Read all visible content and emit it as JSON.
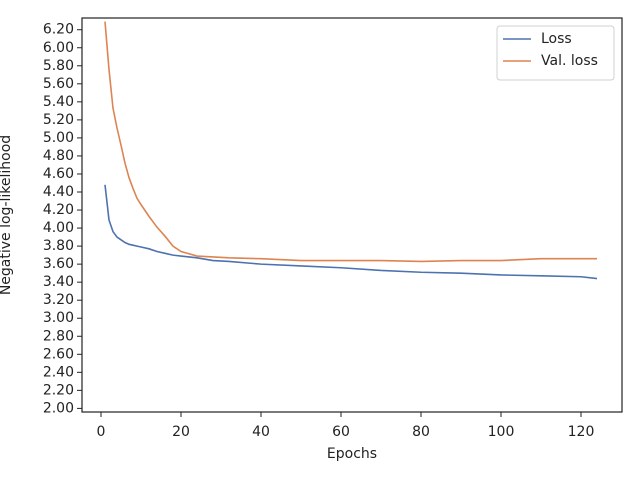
{
  "chart_data": {
    "type": "line",
    "xlabel": "Epochs",
    "ylabel": "Negative log-likelihood",
    "x": [
      1,
      2,
      3,
      4,
      5,
      6,
      7,
      8,
      9,
      10,
      12,
      14,
      16,
      18,
      20,
      24,
      28,
      32,
      40,
      50,
      60,
      70,
      80,
      90,
      100,
      110,
      120,
      124
    ],
    "series": [
      {
        "name": "Loss",
        "color": "#4c72b0",
        "values": [
          4.48,
          4.09,
          3.96,
          3.9,
          3.87,
          3.84,
          3.82,
          3.81,
          3.8,
          3.79,
          3.77,
          3.74,
          3.72,
          3.7,
          3.69,
          3.67,
          3.64,
          3.63,
          3.6,
          3.58,
          3.56,
          3.53,
          3.51,
          3.5,
          3.48,
          3.47,
          3.46,
          3.44
        ]
      },
      {
        "name": "Val. loss",
        "color": "#dd8452",
        "values": [
          6.29,
          5.76,
          5.33,
          5.11,
          4.92,
          4.72,
          4.56,
          4.44,
          4.33,
          4.26,
          4.13,
          4.01,
          3.91,
          3.8,
          3.74,
          3.69,
          3.68,
          3.67,
          3.66,
          3.64,
          3.64,
          3.64,
          3.63,
          3.64,
          3.64,
          3.66,
          3.66,
          3.66
        ]
      }
    ],
    "xlim": [
      -4.75,
      130.25
    ],
    "xticks": [
      0,
      20,
      40,
      60,
      80,
      100,
      120
    ],
    "ylim": [
      1.96,
      6.33
    ],
    "yticks": [
      {
        "value": 2.0,
        "label": "2.00"
      },
      {
        "value": 2.2,
        "label": "2.20"
      },
      {
        "value": 2.4,
        "label": "2.40"
      },
      {
        "value": 2.6,
        "label": "2.60"
      },
      {
        "value": 2.8,
        "label": "2.80"
      },
      {
        "value": 3.0,
        "label": "3.00"
      },
      {
        "value": 3.2,
        "label": "3.20"
      },
      {
        "value": 3.4,
        "label": "3.40"
      },
      {
        "value": 3.6,
        "label": "3.60"
      },
      {
        "value": 3.8,
        "label": "3.80"
      },
      {
        "value": 4.0,
        "label": "4.00"
      },
      {
        "value": 4.2,
        "label": "4.20"
      },
      {
        "value": 4.4,
        "label": "4.40"
      },
      {
        "value": 4.6,
        "label": "4.60"
      },
      {
        "value": 4.8,
        "label": "4.80"
      },
      {
        "value": 5.0,
        "label": "5.00"
      },
      {
        "value": 5.2,
        "label": "5.20"
      },
      {
        "value": 5.4,
        "label": "5.40"
      },
      {
        "value": 5.6,
        "label": "5.60"
      },
      {
        "value": 5.8,
        "label": "5.80"
      },
      {
        "value": 6.0,
        "label": "6.00"
      },
      {
        "value": 6.2,
        "label": "6.20"
      }
    ],
    "legend": "upper right",
    "grid": false
  }
}
